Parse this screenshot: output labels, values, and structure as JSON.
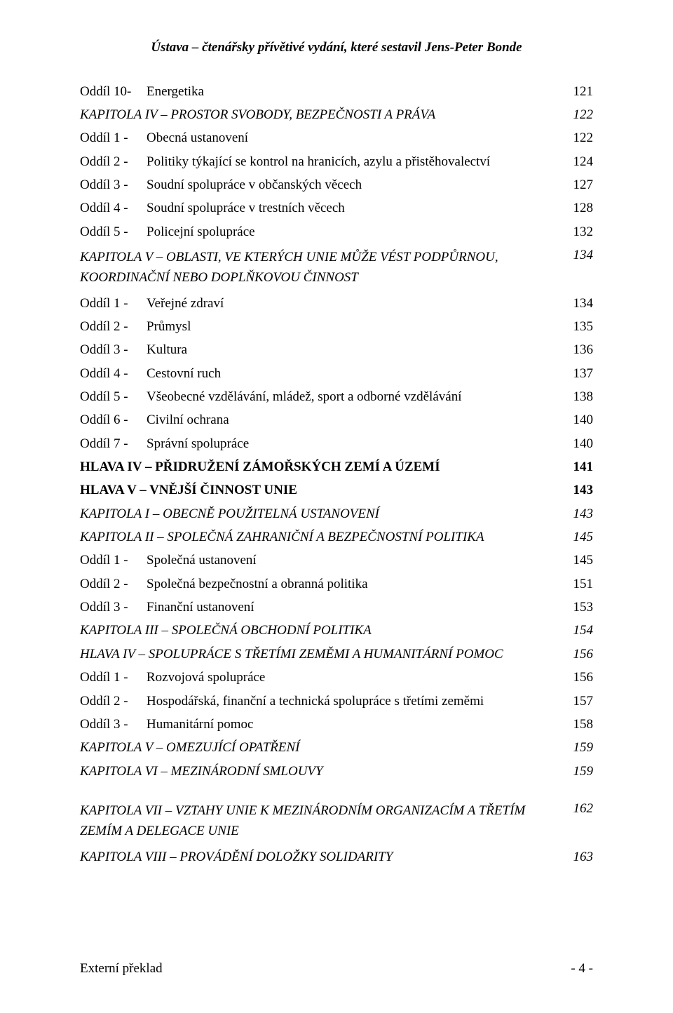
{
  "header": "Ústava – čtenářsky přívětivé vydání, které sestavil Jens-Peter Bonde",
  "entries": [
    {
      "prefix": "Oddíl 10-",
      "text": "Energetika",
      "page": "121",
      "style": ""
    },
    {
      "prefix": "",
      "text": "KAPITOLA IV – PROSTOR SVOBODY, BEZPEČNOSTI A PRÁVA",
      "page": "122",
      "style": "italic"
    },
    {
      "prefix": "Oddíl 1 -",
      "text": "Obecná ustanovení",
      "page": "122",
      "style": ""
    },
    {
      "prefix": "Oddíl 2 -",
      "text": "Politiky týkající se kontrol na hranicích, azylu a přistěhovalectví",
      "page": "124",
      "style": ""
    },
    {
      "prefix": "Oddíl 3 -",
      "text": "Soudní spolupráce v občanských věcech",
      "page": "127",
      "style": ""
    },
    {
      "prefix": "Oddíl 4 -",
      "text": "Soudní spolupráce v trestních věcech",
      "page": "128",
      "style": ""
    },
    {
      "prefix": "Oddíl 5 -",
      "text": "Policejní spolupráce",
      "page": "132",
      "style": ""
    },
    {
      "prefix": "",
      "text": "KAPITOLA V – OBLASTI, VE KTERÝCH UNIE MŮŽE VÉST PODPŮRNOU, KOORDINAČNÍ NEBO DOPLŇKOVOU ČINNOST",
      "page": "134",
      "style": "italic",
      "multiline": true
    },
    {
      "prefix": "Oddíl 1 -",
      "text": "Veřejné zdraví",
      "page": "134",
      "style": ""
    },
    {
      "prefix": "Oddíl 2 -",
      "text": "Průmysl",
      "page": "135",
      "style": ""
    },
    {
      "prefix": "Oddíl 3 -",
      "text": "Kultura",
      "page": "136",
      "style": ""
    },
    {
      "prefix": "Oddíl 4 -",
      "text": "Cestovní ruch",
      "page": "137",
      "style": ""
    },
    {
      "prefix": "Oddíl 5 -",
      "text": "Všeobecné vzdělávání, mládež, sport a odborné vzdělávání",
      "page": "138",
      "style": ""
    },
    {
      "prefix": "Oddíl 6 -",
      "text": "Civilní ochrana",
      "page": "140",
      "style": ""
    },
    {
      "prefix": "Oddíl 7 -",
      "text": "Správní spolupráce",
      "page": "140",
      "style": ""
    },
    {
      "prefix": "",
      "text": "HLAVA IV – PŘIDRUŽENÍ ZÁMOŘSKÝCH ZEMÍ A ÚZEMÍ",
      "page": "141",
      "style": "bold"
    },
    {
      "prefix": "",
      "text": "HLAVA V – VNĚJŠÍ ČINNOST UNIE",
      "page": "143",
      "style": "bold"
    },
    {
      "prefix": "",
      "text": "KAPITOLA I – OBECNĚ POUŽITELNÁ USTANOVENÍ",
      "page": "143",
      "style": "italic"
    },
    {
      "prefix": "",
      "text": "KAPITOLA II – SPOLEČNÁ ZAHRANIČNÍ A BEZPEČNOSTNÍ POLITIKA",
      "page": "145",
      "style": "italic"
    },
    {
      "prefix": "Oddíl 1 -",
      "text": "Společná ustanovení",
      "page": "145",
      "style": ""
    },
    {
      "prefix": "Oddíl 2 -",
      "text": "Společná bezpečnostní a obranná politika",
      "page": "151",
      "style": ""
    },
    {
      "prefix": "Oddíl 3 -",
      "text": "Finanční ustanovení",
      "page": "153",
      "style": ""
    },
    {
      "prefix": "",
      "text": "KAPITOLA III – SPOLEČNÁ OBCHODNÍ POLITIKA",
      "page": "154",
      "style": "italic"
    },
    {
      "prefix": "",
      "text": "HLAVA IV – SPOLUPRÁCE S TŘETÍMI ZEMĚMI A HUMANITÁRNÍ POMOC",
      "page": "156",
      "style": "italic"
    },
    {
      "prefix": "Oddíl 1 -",
      "text": "Rozvojová spolupráce",
      "page": "156",
      "style": ""
    },
    {
      "prefix": "Oddíl 2 -",
      "text": "Hospodářská, finanční a technická spolupráce s třetími zeměmi",
      "page": "157",
      "style": ""
    },
    {
      "prefix": "Oddíl 3 -",
      "text": "Humanitární pomoc",
      "page": "158",
      "style": ""
    },
    {
      "prefix": "",
      "text": "KAPITOLA V – OMEZUJÍCÍ OPATŘENÍ",
      "page": "159",
      "style": "italic"
    },
    {
      "prefix": "",
      "text": "KAPITOLA VI – MEZINÁRODNÍ SMLOUVY",
      "page": "159",
      "style": "italic"
    },
    {
      "prefix": "",
      "text": "KAPITOLA VII – VZTAHY UNIE K MEZINÁRODNÍM ORGANIZACÍM A TŘETÍM ZEMÍM A DELEGACE UNIE",
      "page": "162",
      "style": "italic",
      "gap": true,
      "multiline": true
    },
    {
      "prefix": "",
      "text": "KAPITOLA VIII – PROVÁDĚNÍ DOLOŽKY SOLIDARITY",
      "page": "163",
      "style": "italic"
    }
  ],
  "footer": {
    "left": "Externí překlad",
    "right": "- 4 -"
  }
}
